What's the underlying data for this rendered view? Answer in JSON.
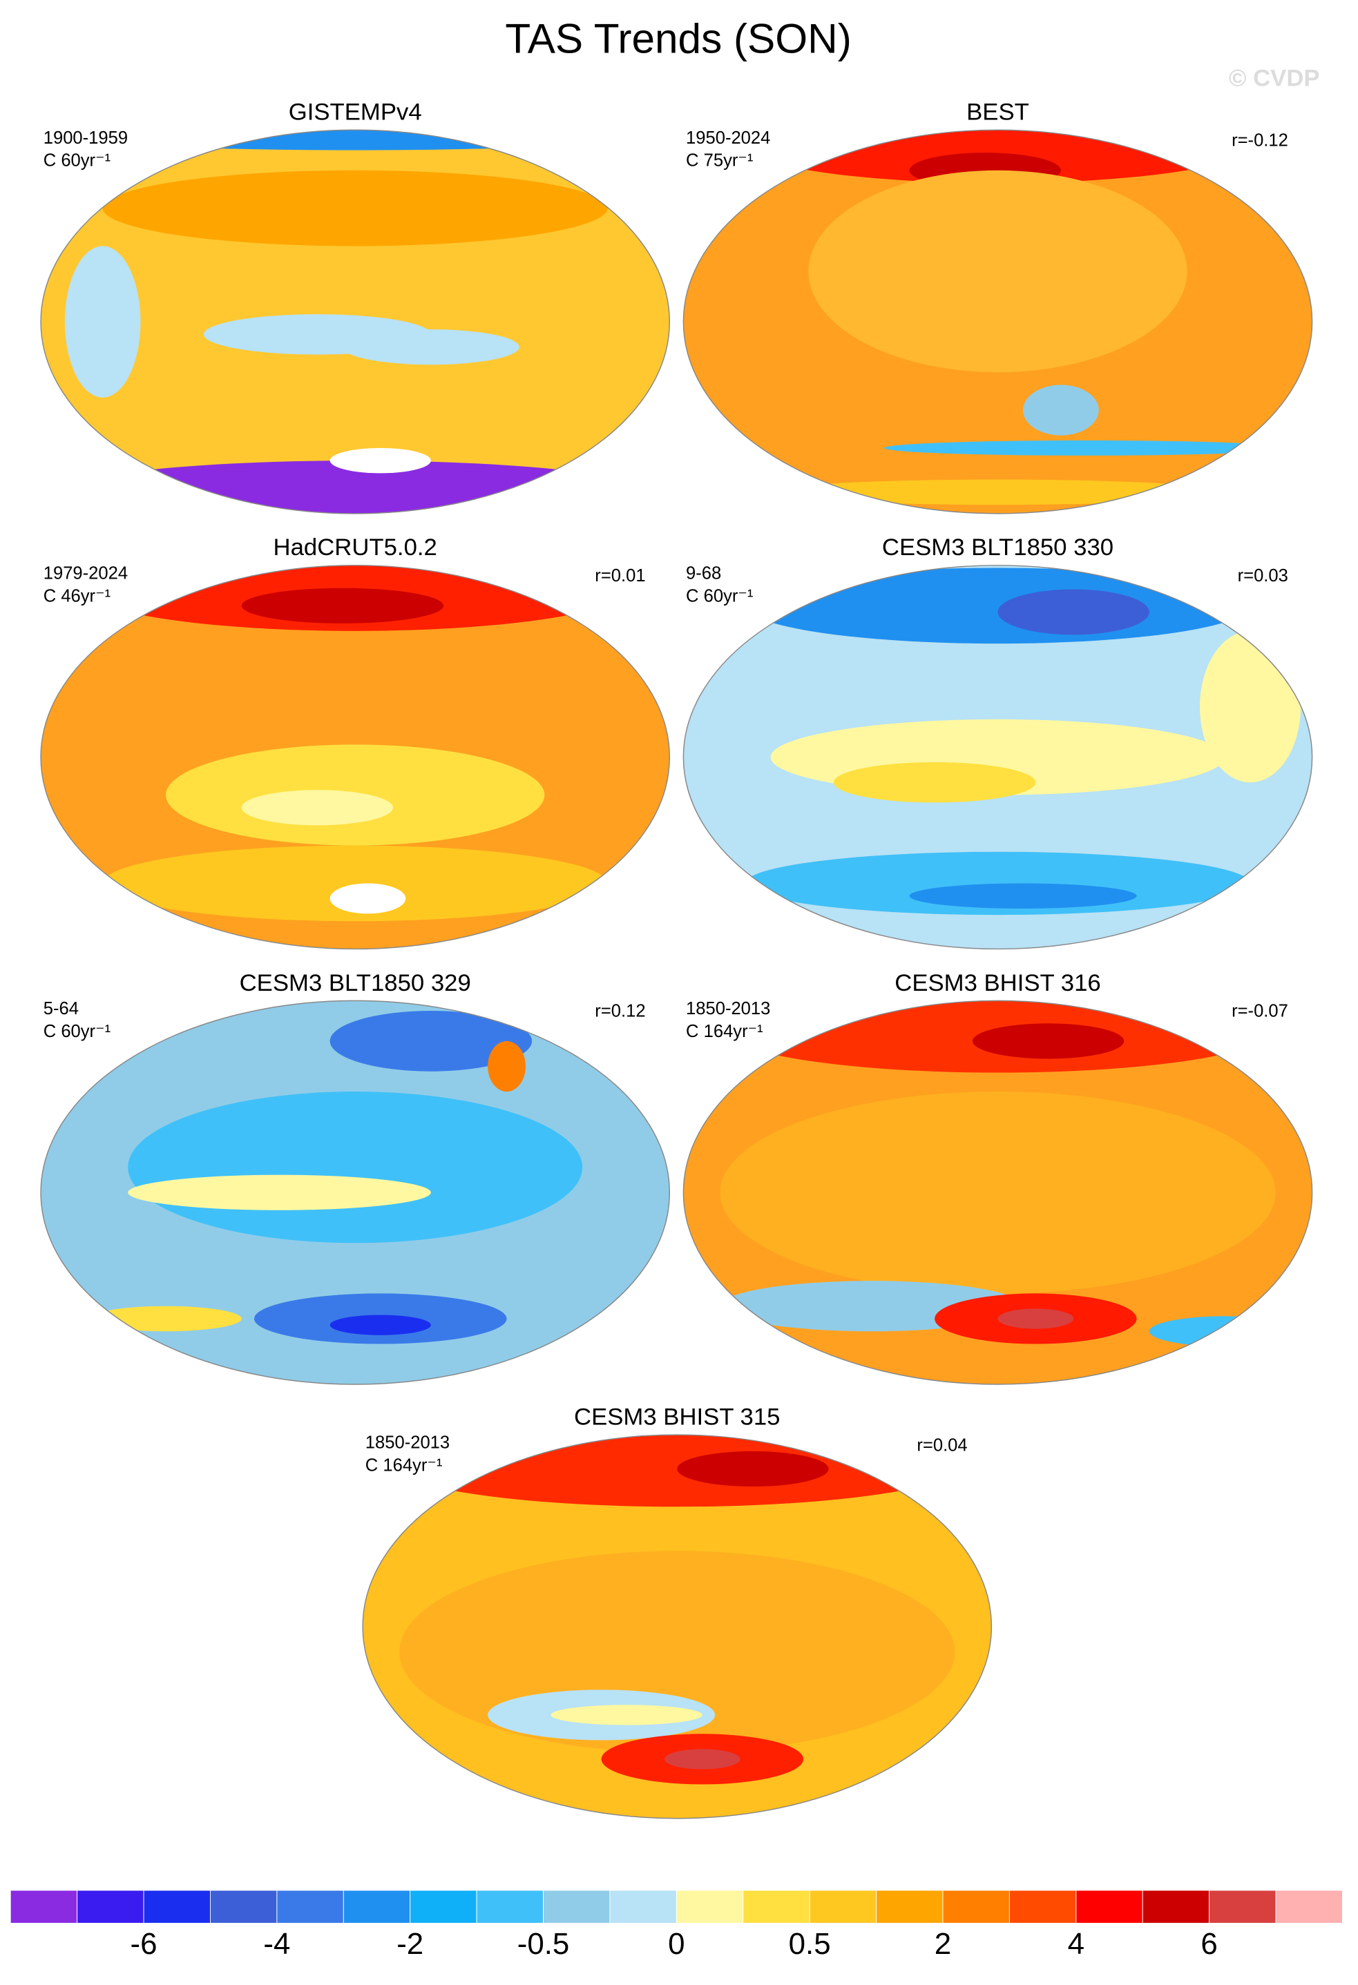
{
  "title": "TAS Trends (SON)",
  "watermark": "© CVDP",
  "panels": [
    {
      "title": "GISTEMPv4",
      "period": "1900-1959",
      "units": "C 60yr⁻¹"
    },
    {
      "title": "BEST",
      "period": "1950-2024",
      "units": "C 75yr⁻¹",
      "r": "r=-0.12"
    },
    {
      "title": "HadCRUT5.0.2",
      "period": "1979-2024",
      "units": "C 46yr⁻¹",
      "r": "r=0.01"
    },
    {
      "title": "CESM3 BLT1850 330",
      "period": "9-68",
      "units": "C 60yr⁻¹",
      "r": "r=0.03"
    },
    {
      "title": "CESM3 BLT1850 329",
      "period": "5-64",
      "units": "C 60yr⁻¹",
      "r": "r=0.12"
    },
    {
      "title": "CESM3 BHIST 316",
      "period": "1850-2013",
      "units": "C 164yr⁻¹",
      "r": "r=-0.07"
    },
    {
      "title": "CESM3 BHIST 315",
      "period": "1850-2013",
      "units": "C 164yr⁻¹",
      "r": "r=0.04"
    }
  ],
  "colorbar": {
    "colors": [
      "#8a2be2",
      "#3a1cf0",
      "#1a2ef0",
      "#3c5fd8",
      "#3a7ae8",
      "#2090f0",
      "#10b0f8",
      "#40c0f8",
      "#90cce8",
      "#b8e2f5",
      "#fff8a0",
      "#ffe040",
      "#ffc820",
      "#ffa500",
      "#ff7f00",
      "#ff4b00",
      "#ff0000",
      "#cc0000",
      "#d84040",
      "#ffb0b0"
    ],
    "ticks": [
      -6,
      -4,
      -2,
      -0.5,
      0,
      0.5,
      2,
      4,
      6
    ]
  }
}
